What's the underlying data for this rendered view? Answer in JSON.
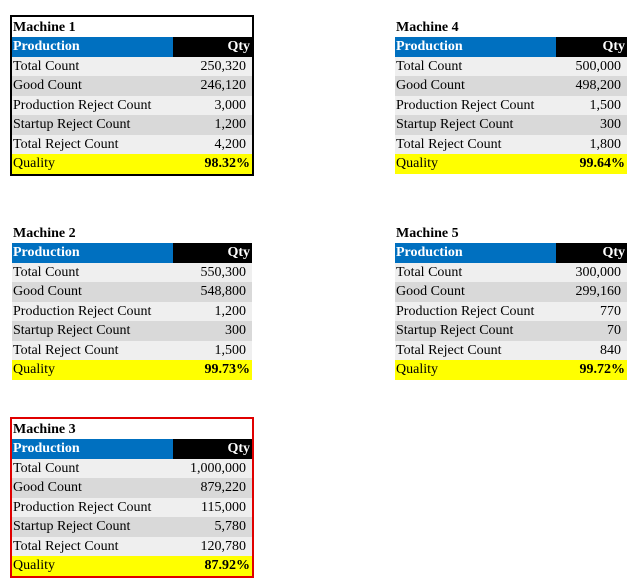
{
  "tables": [
    {
      "title": "Machine 1",
      "header": [
        "Production",
        "Qty"
      ],
      "rows": [
        [
          "Total Count",
          "250,320"
        ],
        [
          "Good Count",
          "246,120"
        ],
        [
          "Production Reject Count",
          "3,000"
        ],
        [
          "Startup Reject Count",
          "1,200"
        ],
        [
          "Total Reject Count",
          "4,200"
        ]
      ],
      "quality": [
        "Quality",
        "98.32%"
      ]
    },
    {
      "title": "Machine 4",
      "header": [
        "Production",
        "Qty"
      ],
      "rows": [
        [
          "Total Count",
          "500,000"
        ],
        [
          "Good Count",
          "498,200"
        ],
        [
          "Production Reject Count",
          "1,500"
        ],
        [
          "Startup Reject Count",
          "300"
        ],
        [
          "Total Reject Count",
          "1,800"
        ]
      ],
      "quality": [
        "Quality",
        "99.64%"
      ]
    },
    {
      "title": "Machine 2",
      "header": [
        "Production",
        "Qty"
      ],
      "rows": [
        [
          "Total Count",
          "550,300"
        ],
        [
          "Good Count",
          "548,800"
        ],
        [
          "Production Reject Count",
          "1,200"
        ],
        [
          "Startup Reject Count",
          "300"
        ],
        [
          "Total Reject Count",
          "1,500"
        ]
      ],
      "quality": [
        "Quality",
        "99.73%"
      ]
    },
    {
      "title": "Machine 5",
      "header": [
        "Production",
        "Qty"
      ],
      "rows": [
        [
          "Total Count",
          "300,000"
        ],
        [
          "Good Count",
          "299,160"
        ],
        [
          "Production Reject Count",
          "770"
        ],
        [
          "Startup Reject Count",
          "70"
        ],
        [
          "Total Reject Count",
          "840"
        ]
      ],
      "quality": [
        "Quality",
        "99.72%"
      ]
    },
    {
      "title": "Machine 3",
      "header": [
        "Production",
        "Qty"
      ],
      "rows": [
        [
          "Total Count",
          "1,000,000"
        ],
        [
          "Good Count",
          "879,220"
        ],
        [
          "Production Reject Count",
          "115,000"
        ],
        [
          "Startup Reject Count",
          "5,780"
        ],
        [
          "Total Reject Count",
          "120,780"
        ]
      ],
      "quality": [
        "Quality",
        "87.92%"
      ]
    }
  ]
}
